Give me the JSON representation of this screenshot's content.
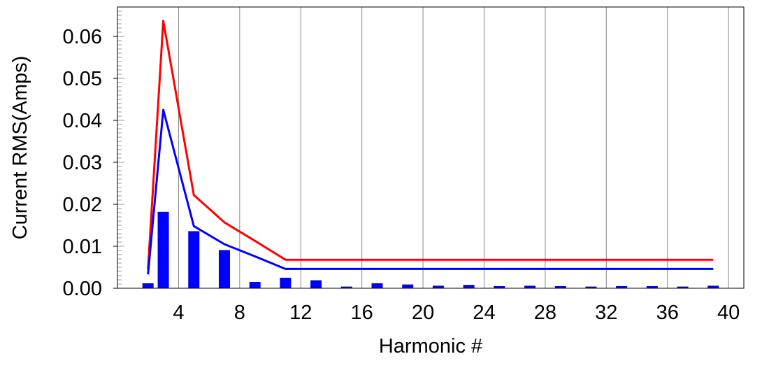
{
  "chart_data": {
    "type": "bar",
    "title": "",
    "xlabel": "Harmonic #",
    "ylabel": "Current RMS(Amps)",
    "xlim": [
      0,
      41
    ],
    "ylim": [
      0,
      0.067
    ],
    "x_ticks": [
      "4",
      "8",
      "12",
      "16",
      "20",
      "24",
      "28",
      "32",
      "36",
      "40"
    ],
    "x_tick_values": [
      4,
      8,
      12,
      16,
      20,
      24,
      28,
      32,
      36,
      40
    ],
    "y_ticks": [
      "0.00",
      "0.01",
      "0.02",
      "0.03",
      "0.04",
      "0.05",
      "0.06"
    ],
    "y_tick_values": [
      0,
      0.01,
      0.02,
      0.03,
      0.04,
      0.05,
      0.06
    ],
    "grid": "vertical",
    "bars": {
      "color": "#0000ff",
      "x": [
        2,
        3,
        5,
        7,
        9,
        11,
        13,
        15,
        17,
        19,
        21,
        23,
        25,
        27,
        29,
        31,
        33,
        35,
        37,
        39
      ],
      "values": [
        0.0012,
        0.0182,
        0.0136,
        0.0091,
        0.0015,
        0.0025,
        0.0019,
        0.0004,
        0.0012,
        0.0009,
        0.0006,
        0.0008,
        0.0005,
        0.0006,
        0.0005,
        0.0004,
        0.0005,
        0.0005,
        0.0004,
        0.0006
      ]
    },
    "series": [
      {
        "color": "#ff0000",
        "x": [
          2,
          3,
          5,
          7,
          9,
          11,
          39
        ],
        "values": [
          0.0045,
          0.0637,
          0.0222,
          0.0157,
          0.0113,
          0.0068,
          0.0068
        ]
      },
      {
        "color": "#0000ff",
        "x": [
          2,
          3,
          5,
          7,
          9,
          11,
          39
        ],
        "values": [
          0.0033,
          0.0425,
          0.0148,
          0.0105,
          0.0076,
          0.0046,
          0.0046
        ]
      }
    ]
  }
}
